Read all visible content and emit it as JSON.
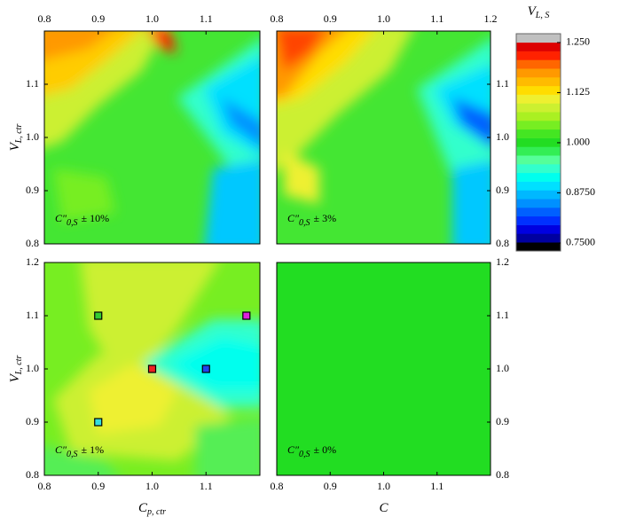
{
  "chart_data": [
    {
      "type": "contour",
      "xlim": [
        0.8,
        1.2
      ],
      "ylim": [
        0.8,
        1.2
      ],
      "xaxis_position": "top",
      "yaxis_position": "left",
      "xticks": [
        0.8,
        0.9,
        {
          "value": 1,
          "label": "1.0"
        },
        1.1
      ],
      "yticks": [
        0.8,
        0.9,
        {
          "value": 1,
          "label": "1.0"
        },
        1.1
      ],
      "ylabel": "V",
      "ylabel_sub": "L, ctr",
      "annotation_symbol": "C″",
      "annotation_sub": "0,S",
      "annotation_text": "± 10%"
    },
    {
      "type": "contour",
      "xlim": [
        0.8,
        1.2
      ],
      "ylim": [
        0.8,
        1.2
      ],
      "xaxis_position": "top",
      "yaxis_position": "right",
      "xticks": [
        0.8,
        0.9,
        {
          "value": 1,
          "label": "1.0"
        },
        1.1,
        1.2
      ],
      "yticks": [
        0.8,
        0.9,
        {
          "value": 1,
          "label": "1.0"
        },
        1.1
      ],
      "annotation_symbol": "C″",
      "annotation_sub": "0,S",
      "annotation_text": "± 3%"
    },
    {
      "type": "contour",
      "xlim": [
        0.8,
        1.2
      ],
      "ylim": [
        0.8,
        1.2
      ],
      "xaxis_position": "bottom",
      "yaxis_position": "left",
      "xticks": [
        0.8,
        0.9,
        {
          "value": 1,
          "label": "1.0"
        },
        1.1
      ],
      "yticks": [
        0.8,
        0.9,
        {
          "value": 1,
          "label": "1.0"
        },
        1.1,
        1.2
      ],
      "xlabel": "C",
      "xlabel_sub": "p, ctr",
      "ylabel": "V",
      "ylabel_sub": "L, ctr",
      "annotation_symbol": "C″",
      "annotation_sub": "0,S",
      "annotation_text": "± 1%",
      "markers": {
        "x": [
          0.9,
          1.0,
          1.1,
          0.9,
          1.175
        ],
        "y": [
          1.1,
          1.0,
          1.0,
          0.9,
          1.1
        ],
        "colors": [
          "#33cc33",
          "#ee2222",
          "#2244ee",
          "#33dddd",
          "#dd22dd"
        ]
      }
    },
    {
      "type": "contour",
      "xlim": [
        0.8,
        1.2
      ],
      "ylim": [
        0.8,
        1.2
      ],
      "xaxis_position": "bottom",
      "yaxis_position": "right",
      "xticks": [
        0.8,
        0.9,
        {
          "value": 1,
          "label": "1.0"
        },
        1.1
      ],
      "yticks": [
        0.8,
        0.9,
        {
          "value": 1,
          "label": "1.0"
        },
        1.1,
        1.2
      ],
      "xlabel": "C",
      "annotation_symbol": "C″",
      "annotation_sub": "0,S",
      "annotation_text": "± 0%"
    }
  ],
  "colorbar": {
    "title": "V",
    "title_sub": "L, S",
    "lim": [
      0.73,
      1.272
    ],
    "ticks": [
      {
        "value": 0.75,
        "label": "0.7500"
      },
      {
        "value": 0.875,
        "label": "0.8750"
      },
      {
        "value": 1,
        "label": "1.000"
      },
      1.125,
      {
        "value": 1.25,
        "label": "1.250"
      }
    ],
    "colors": [
      "#000000",
      "#0000a0",
      "#0000e0",
      "#0030ff",
      "#0060ff",
      "#0090ff",
      "#00b8ff",
      "#00e0ff",
      "#00ffee",
      "#33ffcc",
      "#55ff99",
      "#33ee55",
      "#22dd22",
      "#44e622",
      "#77ee22",
      "#aaf022",
      "#ccf030",
      "#eef030",
      "#ffdd00",
      "#ffbb00",
      "#ff9900",
      "#ff6600",
      "#ff2200",
      "#dd0000",
      "#c0c0c0"
    ]
  }
}
